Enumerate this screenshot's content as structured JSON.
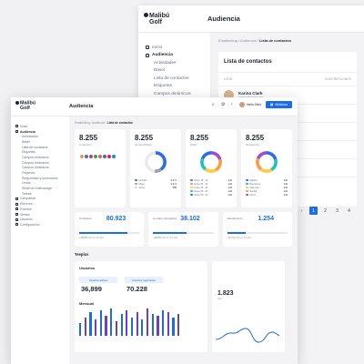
{
  "colors": {
    "accent": "#1a6ce8",
    "ring_a": "#9b4dd8",
    "ring_b": "#ff9b3d",
    "ring_c": "#1ec0c0",
    "ring_d": "#2d6ee8",
    "ring_e": "#ffcc3d"
  },
  "back": {
    "logo": [
      "Malibú",
      "Golf"
    ],
    "title": "Audiencia",
    "sidebar": [
      {
        "label": "Inicio",
        "type": "main"
      },
      {
        "label": "Audiencia",
        "type": "bold"
      },
      {
        "label": "Actividades",
        "type": "sub"
      },
      {
        "label": "Básel",
        "type": "sub"
      },
      {
        "label": "Lista de contactos",
        "type": "sub"
      },
      {
        "label": "Etiquetas",
        "type": "sub"
      },
      {
        "label": "Campos dinámicos",
        "type": "sub"
      }
    ],
    "breadcrumb": [
      "Emailerking",
      "Audiencia",
      "Lista de contactos"
    ],
    "card_title": "Lista de contactos",
    "table_headers": [
      "LISTA",
      "SUSCRIPCIONES"
    ],
    "row": {
      "name": "Karina Clark",
      "email": "karina@mail.com"
    },
    "pages": [
      "1",
      "2",
      "3",
      "4"
    ]
  },
  "front": {
    "logo": [
      "Malibú",
      "Golf"
    ],
    "title": "Audiencia",
    "user": "Hello,Nick",
    "button": "Módulos",
    "breadcrumb": [
      "Emailerking",
      "Audiencia",
      "Lista de contactos"
    ],
    "sidebar": [
      {
        "label": "Inicio",
        "type": "main"
      },
      {
        "label": "Audiencia",
        "type": "bold"
      },
      {
        "label": "Actividades",
        "type": "sub"
      },
      {
        "label": "Básel",
        "type": "sub"
      },
      {
        "label": "Lista de contactos",
        "type": "sub"
      },
      {
        "label": "Etiquetas",
        "type": "sub"
      },
      {
        "label": "Campos dinámicos",
        "type": "sub"
      },
      {
        "label": "Campos dinámicos",
        "type": "sub"
      },
      {
        "label": "Campos dinámicos",
        "type": "sub"
      },
      {
        "label": "Origenes",
        "type": "sub"
      },
      {
        "label": "Respuestas y formularios",
        "type": "sub"
      },
      {
        "label": "Leads",
        "type": "sub"
      },
      {
        "label": "Reserva Golfmanage",
        "type": "sub"
      },
      {
        "label": "Tareas",
        "type": "sub"
      },
      {
        "label": "Campañas",
        "type": "main"
      },
      {
        "label": "Eleceros",
        "type": "main"
      },
      {
        "label": "Eventos",
        "type": "main"
      },
      {
        "label": "Ventas",
        "type": "main"
      },
      {
        "label": "Usuarios",
        "type": "main"
      },
      {
        "label": "Configuración",
        "type": "main"
      }
    ],
    "stats": [
      {
        "value": "8.255",
        "label": "Contactos"
      },
      {
        "value": "8.255",
        "label": "Hombre/Mujer",
        "legend": [
          {
            "label": "Hombre",
            "value": "3.271"
          },
          {
            "label": "Mujer",
            "value": "3.271"
          },
          {
            "label": "Otros",
            "value": "386"
          }
        ]
      },
      {
        "value": "8.255",
        "label": "Edad",
        "legend": [
          {
            "label": "Entre 18 - 24",
            "value": "442"
          },
          {
            "label": "Entre 25 - 34",
            "value": "442"
          },
          {
            "label": "Entre 35 - 44",
            "value": "442"
          },
          {
            "label": "Entre 45 - 54",
            "value": "442"
          },
          {
            "label": "Entre 55 - 64",
            "value": "442"
          }
        ]
      },
      {
        "value": "8.255",
        "label": "Residencia",
        "legend": [
          {
            "label": "Madrid",
            "value": "442"
          },
          {
            "label": "Barcelona",
            "value": "442"
          },
          {
            "label": "Valencia",
            "value": "442"
          },
          {
            "label": "Sevilla",
            "value": "442"
          },
          {
            "label": "Otros",
            "value": "442"
          }
        ]
      }
    ],
    "kpis": [
      {
        "label": "Contactos",
        "value": "80.923",
        "progress": 0.8,
        "delta": "+18,5%",
        "delta_note": "últimos 30 días",
        "delta_kind": "up"
      },
      {
        "label": "E-mails entregados",
        "value": "38.102",
        "progress": 0.55,
        "delta": "+18,5%",
        "delta_note": "últimos 30 días",
        "delta_kind": "up"
      },
      {
        "label": "Rendimiento",
        "value": "1.254",
        "progress": 0.3,
        "delta": "-14,7%",
        "delta_note": "últimos 30 días",
        "delta_kind": "down"
      }
    ],
    "section_title": "Teeplus",
    "usuarios": {
      "title": "Usuarios",
      "boxes": [
        {
          "label": "Usuarios activos",
          "value": "36,899"
        },
        {
          "label": "Usuarios registrados",
          "value": "70.228"
        }
      ],
      "mensual": "Mensual"
    },
    "line_card": {
      "value": "1.823",
      "label": "Usu"
    }
  }
}
